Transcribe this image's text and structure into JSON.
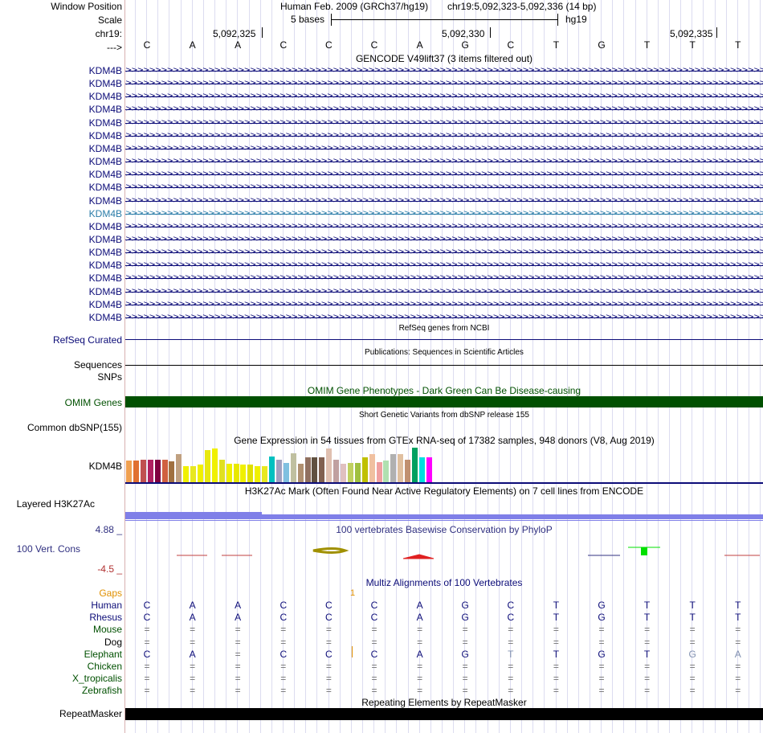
{
  "header": {
    "window_position_label": "Window Position",
    "scale_label": "Scale",
    "chrom_label": "chr19:",
    "arrow_label": "--->",
    "assembly": "Human Feb. 2009 (GRCh37/hg19)",
    "position": "chr19:5,092,323-5,092,336 (14 bp)",
    "scale_text": "5 bases",
    "db": "hg19",
    "coord_1": "5,092,325",
    "coord_2": "5,092,330",
    "coord_3": "5,092,335"
  },
  "sequence": [
    "C",
    "A",
    "A",
    "C",
    "C",
    "C",
    "A",
    "G",
    "C",
    "T",
    "G",
    "T",
    "T",
    "T"
  ],
  "gencode": {
    "title": "GENCODE V49lift37 (3 items filtered out)",
    "gene": "KDM4B",
    "row_count": 20,
    "highlight_row": 12,
    "color": "#0c0c78",
    "highlight_color": "#2a7ca8"
  },
  "tracks": {
    "refseq_title": "RefSeq genes from NCBI",
    "refseq_label": "RefSeq Curated",
    "pubs_title": "Publications: Sequences in Scientific Articles",
    "sequences_label": "Sequences",
    "snps_label": "SNPs",
    "omim_title": "OMIM Gene Phenotypes - Dark Green Can Be Disease-causing",
    "omim_label": "OMIM Genes",
    "omim_color": "#005000",
    "dbsnp_title": "Short Genetic Variants from dbSNP release 155",
    "dbsnp_label": "Common dbSNP(155)",
    "gtex_title": "Gene Expression in 54 tissues from GTEx RNA-seq of 17382 samples, 948 donors (V8, Aug 2019)",
    "gtex_label": "KDM4B",
    "h3k27_title": "H3K27Ac Mark (Often Found Near Active Regulatory Elements) on 7 cell lines from ENCODE",
    "h3k27_label": "Layered H3K27Ac",
    "phylop_title": "100 vertebrates Basewise Conservation by PhyloP",
    "phylop_label": "100 Vert. Cons",
    "phylop_max": "4.88 _",
    "phylop_min": "-4.5 _",
    "multiz_title": "Multiz Alignments of 100 Vertebrates",
    "repeat_title": "Repeating Elements by RepeatMasker",
    "repeat_label": "RepeatMasker"
  },
  "gtex_bars": [
    {
      "color": "#f0a050",
      "h": 0.63
    },
    {
      "color": "#e07030",
      "h": 0.63
    },
    {
      "color": "#c05050",
      "h": 0.66
    },
    {
      "color": "#b02060",
      "h": 0.66
    },
    {
      "color": "#800040",
      "h": 0.66
    },
    {
      "color": "#d06040",
      "h": 0.66
    },
    {
      "color": "#a07040",
      "h": 0.6
    },
    {
      "color": "#c0a080",
      "h": 0.81
    },
    {
      "color": "#f0f000",
      "h": 0.47
    },
    {
      "color": "#e8e820",
      "h": 0.47
    },
    {
      "color": "#f0f000",
      "h": 0.5
    },
    {
      "color": "#e8e810",
      "h": 0.94
    },
    {
      "color": "#f0f000",
      "h": 0.97
    },
    {
      "color": "#e0e020",
      "h": 0.66
    },
    {
      "color": "#f0f000",
      "h": 0.53
    },
    {
      "color": "#e8e800",
      "h": 0.53
    },
    {
      "color": "#f0f000",
      "h": 0.5
    },
    {
      "color": "#e0e000",
      "h": 0.5
    },
    {
      "color": "#f0f000",
      "h": 0.47
    },
    {
      "color": "#e8e820",
      "h": 0.47
    },
    {
      "color": "#00c0c0",
      "h": 0.75
    },
    {
      "color": "#a0a0c0",
      "h": 0.66
    },
    {
      "color": "#80c0e0",
      "h": 0.56
    },
    {
      "color": "#c0c0a0",
      "h": 0.84
    },
    {
      "color": "#b09070",
      "h": 0.53
    },
    {
      "color": "#907060",
      "h": 0.72
    },
    {
      "color": "#605040",
      "h": 0.72
    },
    {
      "color": "#806050",
      "h": 0.72
    },
    {
      "color": "#e0c0b0",
      "h": 0.97
    },
    {
      "color": "#c0a0a0",
      "h": 0.66
    },
    {
      "color": "#e0c0c0",
      "h": 0.53
    },
    {
      "color": "#c0d060",
      "h": 0.56
    },
    {
      "color": "#a0c040",
      "h": 0.56
    },
    {
      "color": "#c0c000",
      "h": 0.72
    },
    {
      "color": "#f0c0a0",
      "h": 0.81
    },
    {
      "color": "#f0a0a0",
      "h": 0.59
    },
    {
      "color": "#b0e0b0",
      "h": 0.63
    },
    {
      "color": "#b0b0b0",
      "h": 0.81
    },
    {
      "color": "#e0c0a0",
      "h": 0.81
    },
    {
      "color": "#c09070",
      "h": 0.66
    },
    {
      "color": "#00a060",
      "h": 1.0
    },
    {
      "color": "#00e0e0",
      "h": 0.72
    },
    {
      "color": "#ff00ff",
      "h": 0.72
    }
  ],
  "multiz": {
    "gaps_label": "Gaps",
    "gaps_mark": "1",
    "rows": [
      {
        "name": "Human",
        "color": "#0c0c78",
        "bases": [
          "C",
          "A",
          "A",
          "C",
          "C",
          "C",
          "A",
          "G",
          "C",
          "T",
          "G",
          "T",
          "T",
          "T"
        ]
      },
      {
        "name": "Rhesus",
        "color": "#0c0c78",
        "bases": [
          "C",
          "A",
          "A",
          "C",
          "C",
          "C",
          "A",
          "G",
          "C",
          "T",
          "G",
          "T",
          "T",
          "T"
        ]
      },
      {
        "name": "Mouse",
        "color": "#005000",
        "bases": [
          "=",
          "=",
          "=",
          "=",
          "=",
          "=",
          "=",
          "=",
          "=",
          "=",
          "=",
          "=",
          "=",
          "="
        ]
      },
      {
        "name": "Dog",
        "color": "#000000",
        "bases": [
          "=",
          "=",
          "=",
          "=",
          "=",
          "=",
          "=",
          "=",
          "=",
          "=",
          "=",
          "=",
          "=",
          "="
        ]
      },
      {
        "name": "Elephant",
        "color": "#005000",
        "bases": [
          "C",
          "A",
          "=",
          "C",
          "C",
          "C",
          "A",
          "G",
          "T",
          "T",
          "G",
          "T",
          "G",
          "A"
        ]
      },
      {
        "name": "Chicken",
        "color": "#005000",
        "bases": [
          "=",
          "=",
          "=",
          "=",
          "=",
          "=",
          "=",
          "=",
          "=",
          "=",
          "=",
          "=",
          "=",
          "="
        ]
      },
      {
        "name": "X_tropicalis",
        "color": "#005000",
        "bases": [
          "=",
          "=",
          "=",
          "=",
          "=",
          "=",
          "=",
          "=",
          "=",
          "=",
          "=",
          "=",
          "=",
          "="
        ]
      },
      {
        "name": "Zebrafish",
        "color": "#005000",
        "bases": [
          "=",
          "=",
          "=",
          "=",
          "=",
          "=",
          "=",
          "=",
          "=",
          "=",
          "=",
          "=",
          "=",
          "="
        ]
      }
    ]
  },
  "colors": {
    "gaps": "#e09000",
    "phylop_label": "#303080",
    "phylop_max": "#303080",
    "phylop_min": "#b03030",
    "h3k27": "#7f7fe8",
    "repeat": "#000000"
  }
}
